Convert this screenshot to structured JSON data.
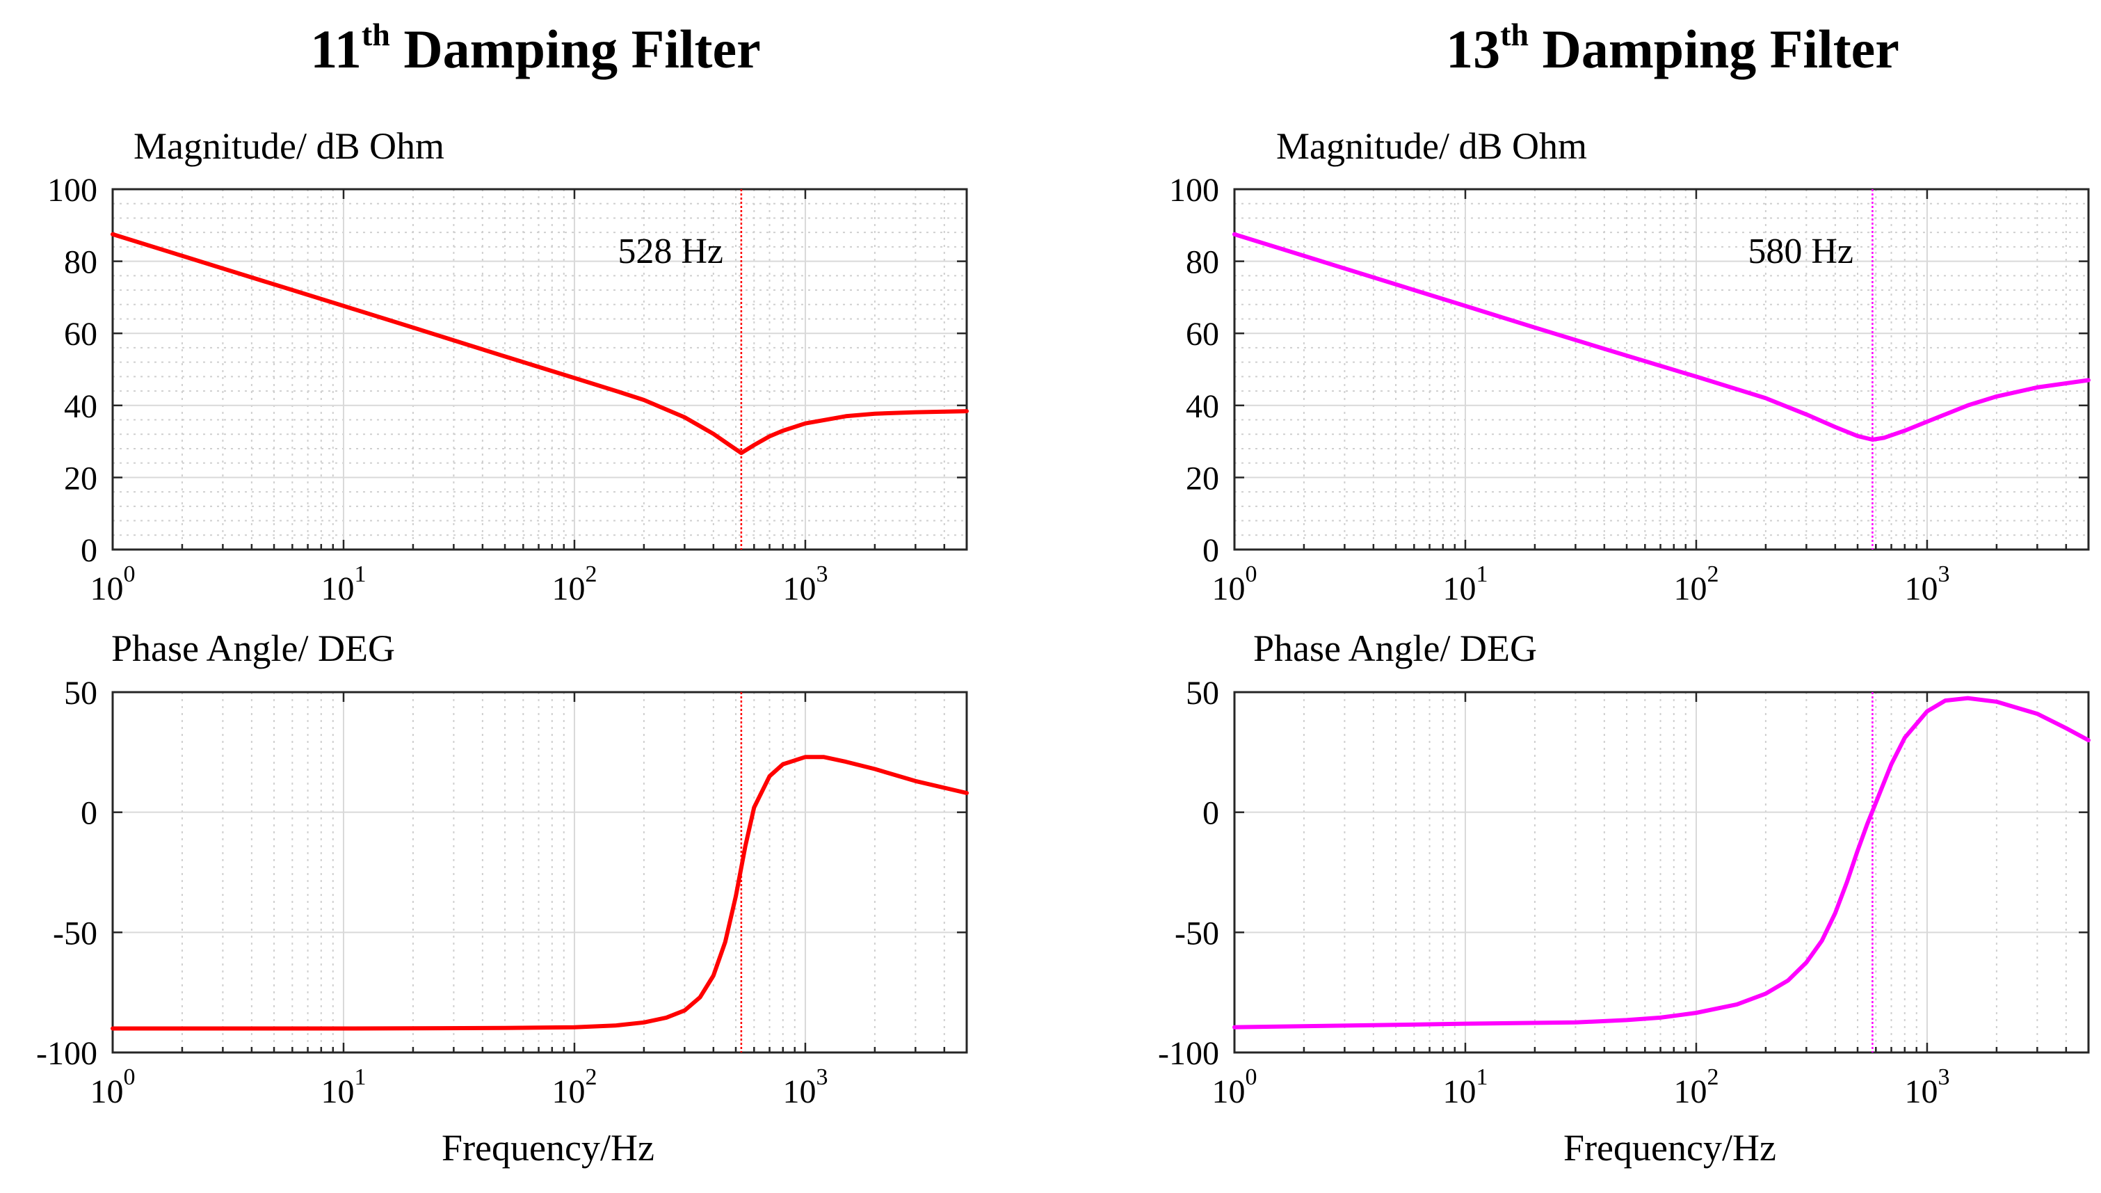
{
  "chart_data": [
    {
      "type": "line",
      "id": "left-magnitude",
      "title": "11",
      "title_sup": "th",
      "title_rest": " Damping Filter",
      "ylabel": "Magnitude/ dB Ohm",
      "xlabel": "",
      "xscale": "log",
      "xlim": [
        1,
        5000
      ],
      "ylim": [
        0,
        100
      ],
      "yticks": [
        0,
        20,
        40,
        60,
        80,
        100
      ],
      "color": "#ff0000",
      "annotation": "528 Hz",
      "marker_x": 528,
      "series": [
        {
          "name": "magnitude",
          "x": [
            1,
            2,
            5,
            10,
            20,
            50,
            100,
            150,
            200,
            300,
            400,
            480,
            528,
            600,
            700,
            800,
            1000,
            1500,
            2000,
            3000,
            5000
          ],
          "y": [
            87.5,
            81.5,
            73.6,
            67.6,
            61.6,
            53.6,
            47.6,
            44.1,
            41.5,
            36.7,
            32.1,
            28.6,
            26.8,
            29.0,
            31.4,
            33.0,
            35.0,
            37.0,
            37.7,
            38.1,
            38.4
          ]
        }
      ]
    },
    {
      "type": "line",
      "id": "left-phase",
      "ylabel": "Phase Angle/ DEG",
      "xlabel": "Frequency/Hz",
      "xscale": "log",
      "xlim": [
        1,
        5000
      ],
      "ylim": [
        -100,
        50
      ],
      "yticks": [
        -100,
        -50,
        0,
        50
      ],
      "color": "#ff0000",
      "marker_x": 528,
      "series": [
        {
          "name": "phase",
          "x": [
            1,
            10,
            50,
            100,
            150,
            200,
            250,
            300,
            350,
            400,
            450,
            500,
            550,
            600,
            700,
            800,
            1000,
            1200,
            1500,
            2000,
            3000,
            5000
          ],
          "y": [
            -90,
            -90,
            -89.8,
            -89.5,
            -88.8,
            -87.5,
            -85.5,
            -82.5,
            -77,
            -68,
            -54,
            -35,
            -14,
            2,
            15,
            20,
            23,
            23,
            21,
            18,
            13,
            8
          ]
        }
      ]
    },
    {
      "type": "line",
      "id": "right-magnitude",
      "title": "13",
      "title_sup": "th",
      "title_rest": " Damping Filter",
      "ylabel": "Magnitude/ dB Ohm",
      "xlabel": "",
      "xscale": "log",
      "xlim": [
        1,
        5000
      ],
      "ylim": [
        0,
        100
      ],
      "yticks": [
        0,
        20,
        40,
        60,
        80,
        100
      ],
      "color": "#ff00ff",
      "annotation": "580 Hz",
      "marker_x": 580,
      "series": [
        {
          "name": "magnitude",
          "x": [
            1,
            2,
            5,
            10,
            20,
            50,
            100,
            200,
            300,
            400,
            500,
            580,
            650,
            800,
            1000,
            1500,
            2000,
            3000,
            5000
          ],
          "y": [
            87.5,
            81.5,
            73.6,
            67.6,
            61.6,
            53.8,
            48,
            42,
            37.5,
            34,
            31.5,
            30.5,
            31,
            33,
            35.5,
            40,
            42.5,
            45,
            47
          ]
        }
      ]
    },
    {
      "type": "line",
      "id": "right-phase",
      "ylabel": "Phase Angle/ DEG",
      "xlabel": "Frequency/Hz",
      "xscale": "log",
      "xlim": [
        1,
        5000
      ],
      "ylim": [
        -100,
        50
      ],
      "yticks": [
        -100,
        -50,
        0,
        50
      ],
      "color": "#ff00ff",
      "marker_x": 580,
      "series": [
        {
          "name": "phase",
          "x": [
            1,
            5,
            10,
            30,
            50,
            70,
            100,
            150,
            200,
            250,
            300,
            350,
            400,
            450,
            500,
            550,
            600,
            700,
            800,
            1000,
            1200,
            1500,
            2000,
            3000,
            4000,
            5000
          ],
          "y": [
            -89.5,
            -88.5,
            -88,
            -87.5,
            -86.5,
            -85.5,
            -83.5,
            -80,
            -75.5,
            -70,
            -62.5,
            -53.5,
            -42,
            -29,
            -16,
            -5,
            4,
            20,
            31,
            42,
            46.5,
            47.5,
            46,
            41,
            35,
            30
          ]
        }
      ]
    }
  ]
}
